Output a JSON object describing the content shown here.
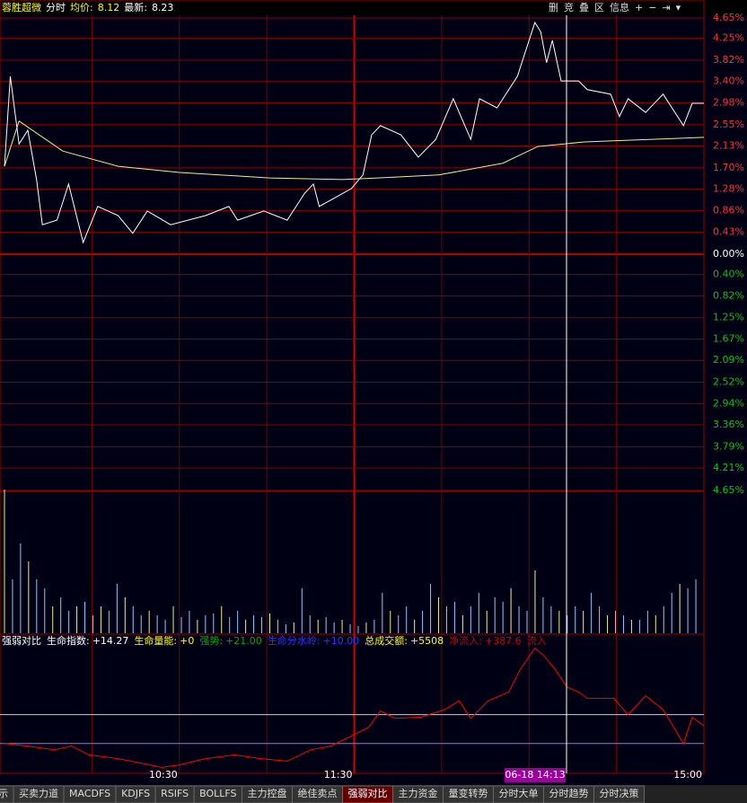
{
  "header": {
    "stock": "蓉胜超微",
    "mode": "分时",
    "avg_label": "均价:",
    "avg": 8.12,
    "last_label": "最新:",
    "last": 8.23,
    "buttons": [
      "删",
      "竞",
      "叠",
      "区",
      "信息",
      "+",
      "−",
      "⇥",
      "▾"
    ]
  },
  "price": {
    "ylim": [
      -4.65,
      4.65
    ],
    "yticks": [
      {
        "value": 4.65,
        "label": "4.65%"
      },
      {
        "value": 4.25,
        "label": "4.25%"
      },
      {
        "value": 3.82,
        "label": "3.82%"
      },
      {
        "value": 3.4,
        "label": "3.40%"
      },
      {
        "value": 2.98,
        "label": "2.98%"
      },
      {
        "value": 2.55,
        "label": "2.55%"
      },
      {
        "value": 2.13,
        "label": "2.13%"
      },
      {
        "value": 1.7,
        "label": "1.70%"
      },
      {
        "value": 1.28,
        "label": "1.28%"
      },
      {
        "value": 0.86,
        "label": "0.86%"
      },
      {
        "value": 0.43,
        "label": "0.43%"
      },
      {
        "value": 0,
        "label": "0.00%"
      },
      {
        "value": -0.4,
        "label": "0.40%"
      },
      {
        "value": -0.82,
        "label": "0.82%"
      },
      {
        "value": -1.25,
        "label": "1.25%"
      },
      {
        "value": -1.67,
        "label": "1.67%"
      },
      {
        "value": -2.09,
        "label": "2.09%"
      },
      {
        "value": -2.52,
        "label": "2.52%"
      },
      {
        "value": -2.94,
        "label": "2.94%"
      },
      {
        "value": -3.36,
        "label": "3.36%"
      },
      {
        "value": -3.79,
        "label": "3.79%"
      },
      {
        "value": -4.21,
        "label": "4.21%"
      },
      {
        "value": -4.65,
        "label": "4.65%"
      }
    ],
    "xlim": [
      0,
      240
    ],
    "price_line": {
      "x": [
        0,
        2,
        5,
        8,
        11,
        13,
        18,
        22,
        27,
        32,
        39,
        44,
        49,
        57,
        69,
        77,
        80,
        89,
        97,
        103,
        106,
        108,
        119,
        123,
        126,
        129,
        136,
        142,
        148,
        154,
        160,
        163,
        169,
        176,
        182,
        184,
        186,
        188,
        191,
        197,
        200,
        208,
        211,
        214,
        220,
        226,
        233,
        236,
        240
      ],
      "values": [
        1.73,
        3.5,
        2.17,
        2.44,
        1.47,
        0.58,
        0.67,
        1.38,
        0.23,
        0.94,
        0.76,
        0.41,
        0.85,
        0.58,
        0.76,
        0.94,
        0.67,
        0.85,
        0.67,
        1.2,
        1.38,
        0.94,
        1.29,
        1.56,
        2.35,
        2.53,
        2.35,
        1.91,
        2.26,
        3.06,
        2.26,
        3.06,
        2.88,
        3.5,
        4.56,
        4.38,
        3.77,
        4.21,
        3.41,
        3.41,
        3.24,
        3.15,
        2.71,
        3.06,
        2.79,
        3.15,
        2.53,
        2.97,
        2.97
      ]
    },
    "avg_line": {
      "x": [
        0,
        5,
        20,
        39,
        60,
        91,
        116,
        128,
        149,
        171,
        183,
        199,
        240
      ],
      "values": [
        1.73,
        2.62,
        2.03,
        1.73,
        1.61,
        1.5,
        1.47,
        1.5,
        1.56,
        1.79,
        2.12,
        2.21,
        2.3
      ]
    },
    "volume": [
      160,
      60,
      100,
      80,
      60,
      50,
      30,
      40,
      25,
      30,
      35,
      20,
      30,
      25,
      55,
      40,
      30,
      20,
      25,
      20,
      15,
      30,
      18,
      25,
      15,
      20,
      22,
      30,
      18,
      25,
      15,
      20,
      18,
      22,
      15,
      10,
      12,
      50,
      20,
      15,
      18,
      12,
      15,
      10,
      8,
      12,
      15,
      45,
      25,
      20,
      30,
      15,
      25,
      55,
      40,
      30,
      35,
      20,
      30,
      45,
      25,
      40,
      35,
      50,
      30,
      25,
      70,
      40,
      30,
      25,
      20,
      30,
      25,
      45,
      30,
      20,
      25,
      20,
      15,
      15,
      25,
      20,
      30,
      45,
      55,
      50,
      60
    ]
  },
  "indicator": {
    "name": "强弱对比",
    "items": [
      {
        "label": "生命指数:",
        "value": "+14.27"
      },
      {
        "label": "生命量能:",
        "value": "+0"
      },
      {
        "label": "强势:",
        "value": "+21.00"
      },
      {
        "label": "生命分水岭:",
        "value": "+10.00"
      },
      {
        "label": "总成交额:",
        "value": "+5508"
      },
      {
        "label": "净流入:",
        "value": "+387.6"
      },
      {
        "label": "流入",
        "value": ""
      }
    ],
    "ylim": [
      0,
      100
    ],
    "levels": [
      46,
      23
    ],
    "line": {
      "x": [
        0,
        8,
        17,
        23,
        29,
        39,
        48,
        54,
        60,
        69,
        79,
        88,
        97,
        105,
        112,
        119,
        125,
        129,
        134,
        143,
        151,
        156,
        160,
        166,
        173,
        177,
        182,
        185,
        189,
        193,
        197,
        200,
        209,
        214,
        220,
        226,
        233,
        236,
        240
      ],
      "values": [
        23,
        21,
        18,
        21,
        14,
        11,
        7,
        4,
        6,
        11,
        14,
        11,
        9,
        18,
        21,
        29,
        36,
        49,
        43,
        44,
        50,
        57,
        43,
        57,
        64,
        82,
        99,
        93,
        82,
        68,
        64,
        59,
        59,
        46,
        61,
        50,
        23,
        44,
        37
      ]
    }
  },
  "time_axis": [
    {
      "value": 60,
      "label": "10:30"
    },
    {
      "value": 120,
      "label": "11:30"
    },
    {
      "value": 240,
      "label": "15:00"
    }
  ],
  "crosshair_label": "06-18 14:13",
  "tabs": [
    "示",
    "买卖力道",
    "MACDFS",
    "KDJFS",
    "RSIFS",
    "BOLLFS",
    "主力控盘",
    "绝佳卖点",
    "强弱对比",
    "主力资金",
    "量变转势",
    "分时大单",
    "分时趋势",
    "分时决策"
  ],
  "active_tab": 8
}
